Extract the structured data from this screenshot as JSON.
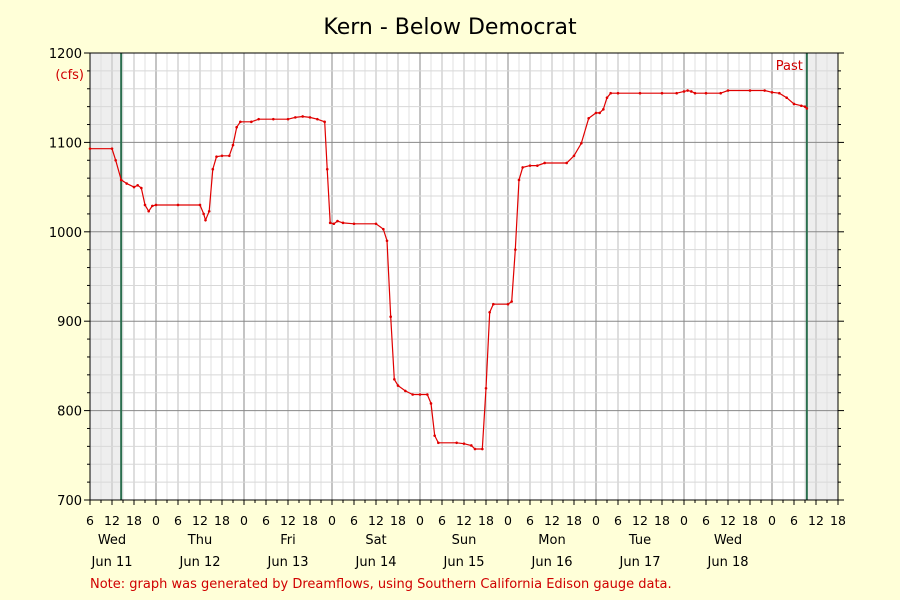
{
  "chart_data": {
    "type": "line",
    "title": "Kern - Below Democrat",
    "ylabel": "(cfs)",
    "ylim": [
      700,
      1200
    ],
    "ytick_labels": [
      "700",
      "800",
      "900",
      "1000",
      "1100",
      "1200"
    ],
    "hour_labels": [
      "6",
      "12",
      "18",
      "0",
      "6",
      "12",
      "18",
      "0",
      "6",
      "12",
      "18",
      "0",
      "6",
      "12",
      "18",
      "0",
      "6",
      "12",
      "18",
      "0",
      "6",
      "12",
      "18",
      "0",
      "6",
      "12",
      "18",
      "0",
      "6",
      "12",
      "18",
      "0",
      "6",
      "12",
      "18"
    ],
    "day_names": [
      "Wed",
      "Thu",
      "Fri",
      "Sat",
      "Sun",
      "Mon",
      "Tue",
      "Wed"
    ],
    "day_dates": [
      "Jun 11",
      "Jun 12",
      "Jun 13",
      "Jun 14",
      "Jun 15",
      "Jun 16",
      "Jun 17",
      "Jun 18"
    ],
    "past_label": "Past",
    "note": "Note: graph was generated by Dreamflows, using Southern California Edison gauge data.",
    "x_unit": "hours since Jun 10 06:00",
    "xlim": [
      0,
      204
    ],
    "past_start": 8.5,
    "past_end": 195.5,
    "grid": true,
    "colors": {
      "line": "#e00000",
      "past_marker": "#2a6e4e",
      "background": "#ffffd8",
      "plot_bg": "#ffffff",
      "outside_past": "#eeeeee",
      "grid": "#c8c8c8",
      "grid_major": "#888888"
    },
    "series": [
      {
        "values": [
          [
            0,
            1093
          ],
          [
            6,
            1093
          ],
          [
            7,
            1080
          ],
          [
            8.5,
            1058
          ],
          [
            10,
            1054
          ],
          [
            12,
            1050
          ],
          [
            13,
            1052
          ],
          [
            14,
            1049
          ],
          [
            15,
            1030
          ],
          [
            16,
            1023
          ],
          [
            17,
            1029
          ],
          [
            18,
            1030
          ],
          [
            24,
            1030
          ],
          [
            30,
            1030
          ],
          [
            31,
            1020
          ],
          [
            31.5,
            1013
          ],
          [
            32.5,
            1023
          ],
          [
            33.5,
            1070
          ],
          [
            34.5,
            1084
          ],
          [
            36,
            1085
          ],
          [
            38,
            1085
          ],
          [
            39,
            1097
          ],
          [
            40,
            1117
          ],
          [
            41,
            1123
          ],
          [
            44,
            1123
          ],
          [
            46,
            1126
          ],
          [
            50,
            1126
          ],
          [
            54,
            1126
          ],
          [
            56,
            1128
          ],
          [
            58,
            1129
          ],
          [
            60,
            1128
          ],
          [
            62,
            1126
          ],
          [
            64,
            1123
          ],
          [
            64.7,
            1070
          ],
          [
            65.5,
            1010
          ],
          [
            66.5,
            1009
          ],
          [
            67.5,
            1012
          ],
          [
            69,
            1010
          ],
          [
            72,
            1009
          ],
          [
            78,
            1009
          ],
          [
            80,
            1003
          ],
          [
            81,
            990
          ],
          [
            82,
            905
          ],
          [
            83,
            835
          ],
          [
            84,
            828
          ],
          [
            86,
            822
          ],
          [
            88,
            818
          ],
          [
            90,
            818
          ],
          [
            92,
            818
          ],
          [
            93,
            808
          ],
          [
            94,
            772
          ],
          [
            95,
            764
          ],
          [
            100,
            764
          ],
          [
            102,
            763
          ],
          [
            104,
            761
          ],
          [
            105,
            757
          ],
          [
            107,
            757
          ],
          [
            108,
            825
          ],
          [
            109,
            910
          ],
          [
            110,
            919
          ],
          [
            114,
            919
          ],
          [
            115,
            922
          ],
          [
            116,
            980
          ],
          [
            117,
            1058
          ],
          [
            118,
            1072
          ],
          [
            120,
            1074
          ],
          [
            122,
            1074
          ],
          [
            124,
            1077
          ],
          [
            130,
            1077
          ],
          [
            132,
            1085
          ],
          [
            134,
            1099
          ],
          [
            136,
            1127
          ],
          [
            138,
            1133
          ],
          [
            139,
            1133
          ],
          [
            140,
            1137
          ],
          [
            141,
            1150
          ],
          [
            142,
            1155
          ],
          [
            144,
            1155
          ],
          [
            150,
            1155
          ],
          [
            156,
            1155
          ],
          [
            160,
            1155
          ],
          [
            162,
            1157
          ],
          [
            163,
            1158
          ],
          [
            164,
            1157
          ],
          [
            165,
            1155
          ],
          [
            168,
            1155
          ],
          [
            172,
            1155
          ],
          [
            174,
            1158
          ],
          [
            180,
            1158
          ],
          [
            184,
            1158
          ],
          [
            186,
            1156
          ],
          [
            188,
            1155
          ],
          [
            190,
            1150
          ],
          [
            192,
            1143
          ],
          [
            194,
            1141
          ],
          [
            195,
            1140
          ],
          [
            195.5,
            1138
          ]
        ]
      }
    ]
  }
}
